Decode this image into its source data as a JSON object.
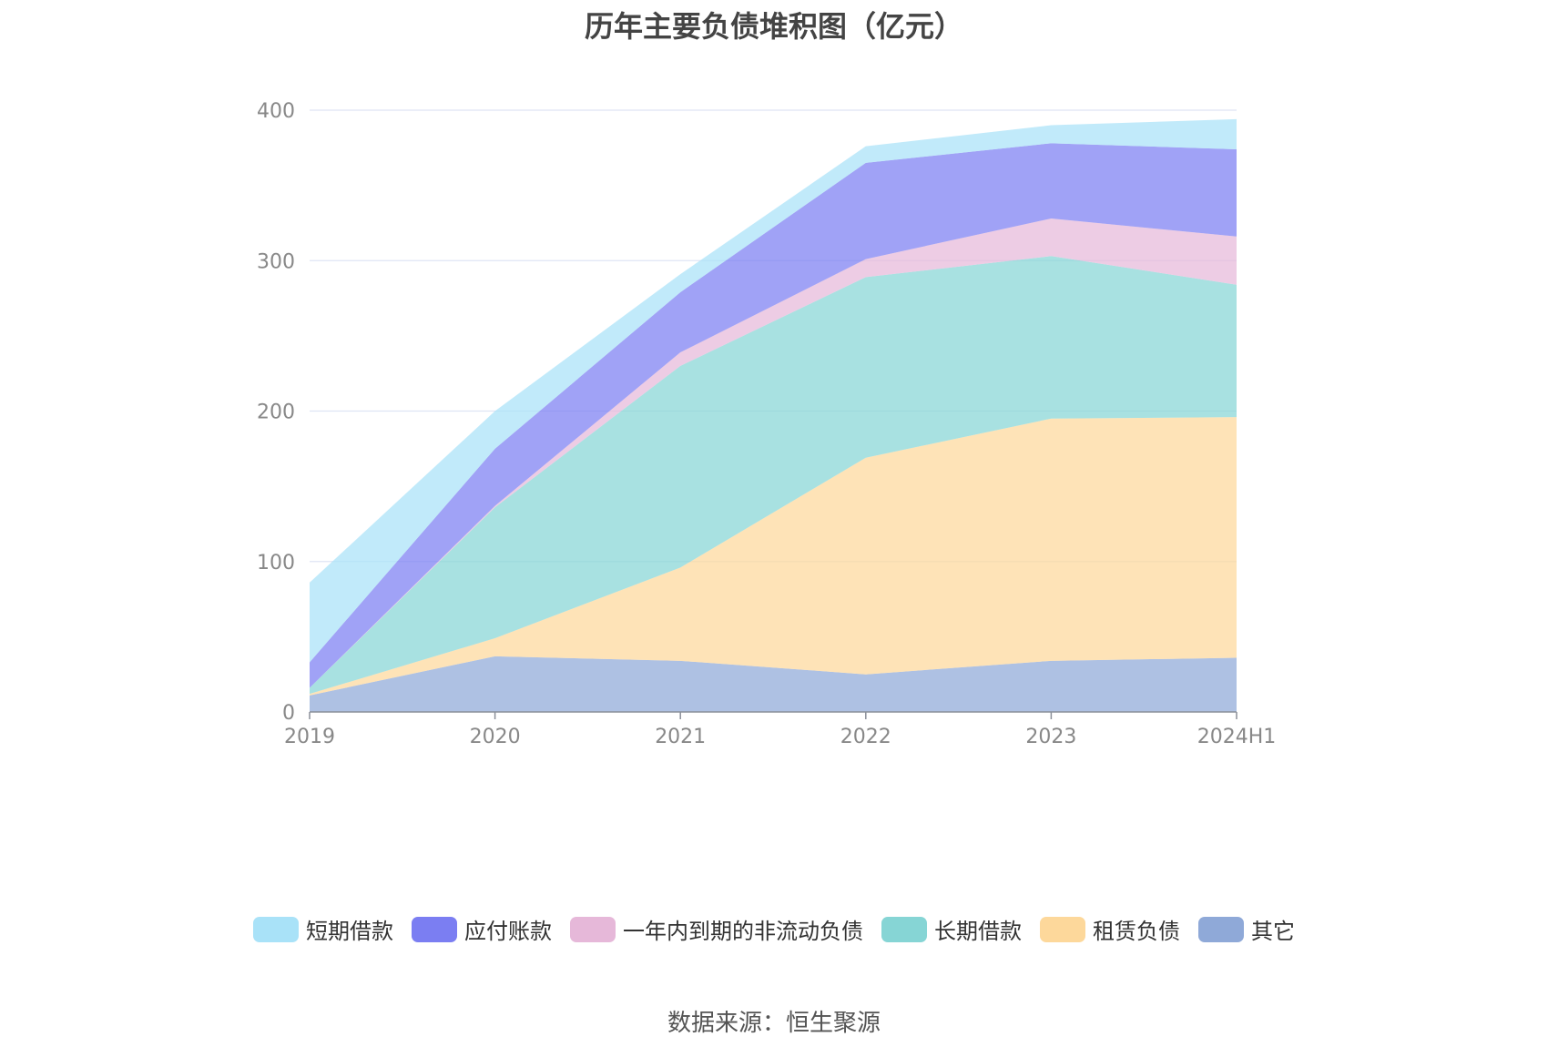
{
  "title": "历年主要负债堆积图（亿元）",
  "source": "数据来源：恒生聚源",
  "chart_data": {
    "type": "area",
    "stacked": true,
    "categories": [
      "2019",
      "2020",
      "2021",
      "2022",
      "2023",
      "2024H1"
    ],
    "ylim": [
      0,
      400
    ],
    "yticks": [
      0,
      100,
      200,
      300,
      400
    ],
    "grid": true,
    "legend_position": "bottom",
    "series": [
      {
        "name": "其它",
        "color": "#8fa9d8",
        "values": [
          11,
          37,
          34,
          25,
          34,
          36
        ]
      },
      {
        "name": "租赁负债",
        "color": "#fdd89b",
        "values": [
          1,
          12,
          62,
          144,
          161,
          160
        ]
      },
      {
        "name": "长期借款",
        "color": "#86d5d5",
        "values": [
          4,
          87,
          134,
          120,
          108,
          88
        ]
      },
      {
        "name": "一年内到期的非流动负债",
        "color": "#e6b8d9",
        "values": [
          0,
          1,
          9,
          12,
          25,
          32
        ]
      },
      {
        "name": "应付账款",
        "color": "#7b7ef2",
        "values": [
          17,
          38,
          40,
          64,
          50,
          58
        ]
      },
      {
        "name": "短期借款",
        "color": "#a9e2f8",
        "values": [
          53,
          25,
          12,
          11,
          12,
          20
        ]
      }
    ]
  },
  "legend_order": [
    "短期借款",
    "应付账款",
    "一年内到期的非流动负债",
    "长期借款",
    "租赁负债",
    "其它"
  ]
}
